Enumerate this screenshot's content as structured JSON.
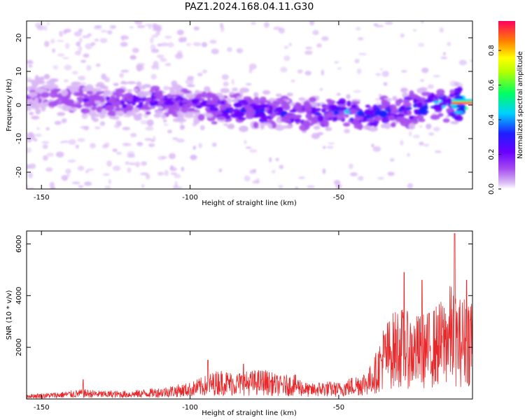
{
  "title": "PAZ1.2024.168.04.11.G30",
  "colors": {
    "line": "#e8282a",
    "spectrogram_palette": [
      "#ffffff",
      "#d9b8f5",
      "#a64df0",
      "#6a00ff",
      "#1e1eff",
      "#00d0ff",
      "#00ff60",
      "#ffff00",
      "#ff8000",
      "#ff0060"
    ]
  },
  "chart_data": [
    {
      "type": "heatmap",
      "xlabel": "Height of straight line (km)",
      "ylabel": "Frequency (Hz)",
      "xlim": [
        -155,
        -5
      ],
      "ylim": [
        -25,
        25
      ],
      "xticks": [
        -150,
        -100,
        -50
      ],
      "yticks": [
        -20,
        -10,
        0,
        10,
        20
      ],
      "colorbar": {
        "label": "Normalized spectral amplitude",
        "range": [
          0.0,
          0.97
        ],
        "ticks": [
          0.0,
          0.2,
          0.4,
          0.6,
          0.8
        ]
      },
      "ridge": {
        "description_free_trace_x": [
          -150,
          -140,
          -130,
          -120,
          -110,
          -100,
          -90,
          -80,
          -70,
          -60,
          -50,
          -40,
          -30,
          -20,
          -12,
          -5
        ],
        "center_freq": [
          3,
          2,
          1,
          1,
          1,
          0,
          -1,
          -2,
          -2,
          -3,
          -2,
          -3,
          -2,
          0,
          0,
          1
        ],
        "peak_amplitude": [
          0.25,
          0.3,
          0.3,
          0.35,
          0.35,
          0.35,
          0.45,
          0.45,
          0.4,
          0.4,
          0.5,
          0.5,
          0.45,
          0.6,
          0.55,
          0.97
        ]
      }
    },
    {
      "type": "line",
      "xlabel": "Height of straight line (km)",
      "ylabel": "SNR (10 * v/v)",
      "xlim": [
        -155,
        -5
      ],
      "ylim": [
        0,
        6500
      ],
      "xticks": [
        -150,
        -100,
        -50
      ],
      "yticks": [
        2000,
        4000,
        6000
      ],
      "series": [
        {
          "x": [
            -155,
            -145,
            -136,
            -130,
            -120,
            -110,
            -100,
            -95,
            -90,
            -85,
            -80,
            -75,
            -70,
            -65,
            -60,
            -55,
            -50,
            -45,
            -40,
            -37,
            -35,
            -30,
            -25,
            -20,
            -15,
            -12,
            -10,
            -6,
            -5
          ],
          "y": [
            150,
            200,
            300,
            250,
            250,
            350,
            500,
            700,
            900,
            800,
            850,
            900,
            700,
            750,
            450,
            550,
            500,
            700,
            900,
            1500,
            2200,
            2800,
            2500,
            2600,
            3000,
            3500,
            3000,
            3200,
            3500
          ],
          "peaks": [
            {
              "x": -136,
              "y": 750
            },
            {
              "x": -94,
              "y": 1500
            },
            {
              "x": -82,
              "y": 1350
            },
            {
              "x": -28,
              "y": 4900
            },
            {
              "x": -22,
              "y": 4600
            },
            {
              "x": -11,
              "y": 6400
            },
            {
              "x": -7,
              "y": 4600
            }
          ]
        }
      ]
    }
  ]
}
